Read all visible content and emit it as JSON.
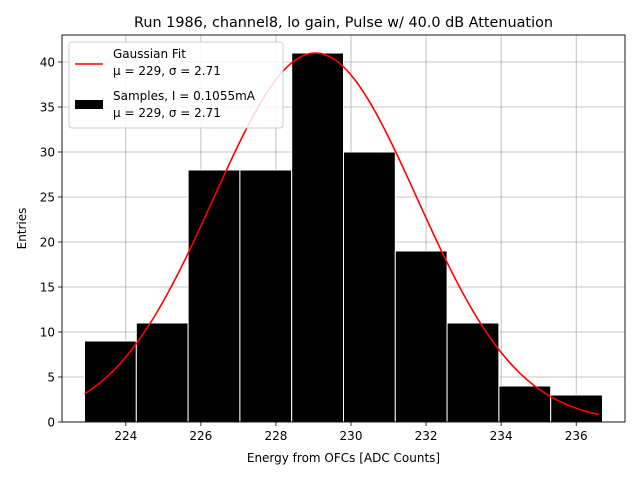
{
  "chart_data": {
    "type": "bar",
    "title": "Run 1986, channel8, lo gain, Pulse w/ 40.0 dB Attenuation",
    "xlabel": "Energy from OFCs [ADC Counts]",
    "ylabel": "Entries",
    "xlim": [
      222.3,
      237.3
    ],
    "ylim": [
      0,
      43
    ],
    "xticks": [
      224,
      226,
      228,
      230,
      232,
      234,
      236
    ],
    "yticks": [
      0,
      5,
      10,
      15,
      20,
      25,
      30,
      35,
      40
    ],
    "grid": true,
    "legend_position": "top-left",
    "histogram": {
      "name": "Samples, I = 0.1055mA",
      "stats": "μ = 229, σ = 2.71",
      "color": "#000000",
      "edge_color": "#ffffff",
      "bin_edges": [
        222.9,
        224.28,
        225.66,
        227.04,
        228.42,
        229.8,
        231.18,
        232.56,
        233.94,
        235.32,
        236.7
      ],
      "counts": [
        9,
        11,
        28,
        28,
        41,
        30,
        19,
        11,
        4,
        3
      ]
    },
    "fit": {
      "name": "Gaussian Fit",
      "stats": "μ = 229, σ = 2.71",
      "color": "#ff0000",
      "mu": 229.05,
      "sigma": 2.71,
      "amplitude": 41.0,
      "x_range": [
        222.9,
        236.6
      ]
    }
  }
}
